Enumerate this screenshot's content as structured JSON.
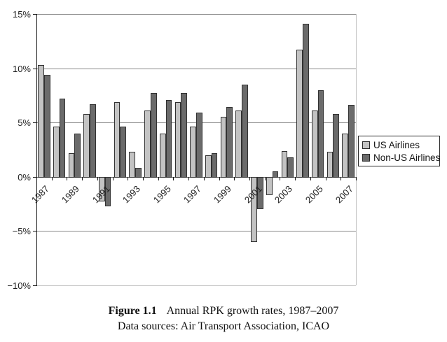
{
  "caption": {
    "label": "Figure 1.1",
    "title": "Annual RPK growth rates, 1987–2007",
    "source": "Data sources: Air Transport Association, ICAO"
  },
  "colors": {
    "us_bar": "#c3c3c3",
    "non_us_bar": "#6b6b6b",
    "bar_border": "#323232",
    "gridline": "#8a8a8a",
    "axis": "#1a1a1a",
    "background": "#ffffff"
  },
  "y_axis": {
    "tick_labels": [
      "15%",
      "10%",
      "5%",
      "0%",
      "−5%",
      "−10%"
    ],
    "max": 15,
    "min": -10,
    "step": 5
  },
  "x_axis": {
    "visible_labels": [
      "1987",
      "1989",
      "1991",
      "1993",
      "1995",
      "1997",
      "1999",
      "2001",
      "2003",
      "2005",
      "2007"
    ],
    "label_every": 2
  },
  "chart_data": {
    "type": "bar",
    "title": "Annual RPK growth rates, 1987–2007",
    "xlabel": "",
    "ylabel": "",
    "ylim": [
      -10,
      15
    ],
    "ytick_step": 5,
    "grid": true,
    "legend_position": "middle-right",
    "categories": [
      1987,
      1988,
      1989,
      1990,
      1991,
      1992,
      1993,
      1994,
      1995,
      1996,
      1997,
      1998,
      1999,
      2000,
      2001,
      2002,
      2003,
      2004,
      2005,
      2006,
      2007
    ],
    "series": [
      {
        "name": "US Airlines",
        "color": "#c3c3c3",
        "values": [
          10.3,
          4.6,
          2.2,
          5.8,
          -2.3,
          6.9,
          2.3,
          6.1,
          4.0,
          6.9,
          4.6,
          2.0,
          5.5,
          6.1,
          -6.0,
          -1.7,
          2.4,
          11.7,
          6.1,
          2.3,
          4.0
        ]
      },
      {
        "name": "Non-US Airlines",
        "color": "#6b6b6b",
        "values": [
          9.4,
          7.2,
          4.0,
          6.7,
          -2.7,
          4.6,
          0.8,
          7.7,
          7.1,
          7.7,
          5.9,
          2.2,
          6.4,
          8.5,
          -3.0,
          0.5,
          1.8,
          14.1,
          8.0,
          5.8,
          6.6
        ]
      }
    ]
  }
}
